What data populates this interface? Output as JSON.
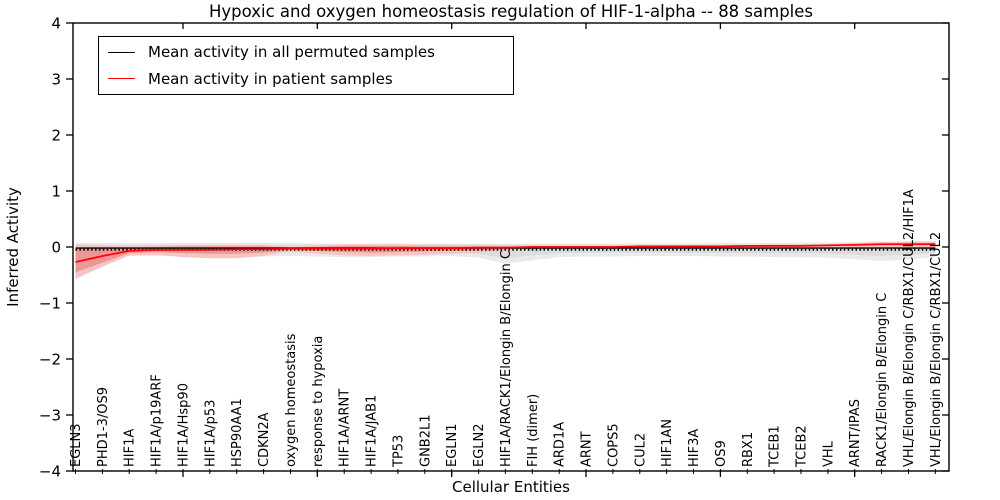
{
  "title": "Hypoxic and oxygen homeostasis regulation of HIF-1-alpha -- 88 samples",
  "sample_count_in_title": 88,
  "legend": {
    "entries": [
      {
        "label": "Mean activity in all permuted samples",
        "color": "#000000"
      },
      {
        "label": "Mean activity in patient samples",
        "color": "#ff0000"
      }
    ],
    "position": "upper left"
  },
  "axes": {
    "xlabel": "Cellular Entities",
    "ylabel": "Inferred Activity",
    "ylim": [
      -4,
      4
    ],
    "yticks": [
      -4,
      -3,
      -2,
      -1,
      0,
      1,
      2,
      3,
      4
    ],
    "xtick_category_numbers": [
      5,
      10,
      15,
      20,
      25,
      30
    ],
    "grid": false,
    "frame": true
  },
  "chart_data": {
    "type": "line",
    "title": "Hypoxic and oxygen homeostasis regulation of HIF-1-alpha -- 88 samples",
    "xlabel": "Cellular Entities",
    "ylabel": "Inferred Activity",
    "ylim": [
      -4,
      4
    ],
    "legend_position": "upper left",
    "categories": [
      "EGLN3",
      "PHD1-3/OS9",
      "HIF1A",
      "HIF1A/p19ARF",
      "HIF1A/Hsp90",
      "HIF1A/p53",
      "HSP90AA1",
      "CDKN2A",
      "oxygen homeostasis",
      "response to hypoxia",
      "HIF1A/ARNT",
      "HIF1A/JAB1",
      "TP53",
      "GNB2L1",
      "EGLN1",
      "EGLN2",
      "HIF1A/RACK1/Elongin B/Elongin C",
      "FIH (dimer)",
      "ARD1A",
      "ARNT",
      "COPS5",
      "CUL2",
      "HIF1AN",
      "HIF3A",
      "OS9",
      "RBX1",
      "TCEB1",
      "TCEB2",
      "VHL",
      "ARNT/IPAS",
      "RACK1/Elongin B/Elongin C",
      "VHL/Elongin B/Elongin C/RBX1/CUL2/HIF1A",
      "VHL/Elongin B/Elongin C/RBX1/CUL2"
    ],
    "series": [
      {
        "name": "Mean activity in all permuted samples",
        "color": "#000000",
        "line_style": "solid-with-dotted-overlay",
        "values": [
          -0.02,
          -0.02,
          -0.02,
          -0.02,
          -0.02,
          -0.02,
          -0.02,
          -0.02,
          -0.02,
          -0.02,
          -0.02,
          -0.02,
          -0.02,
          -0.02,
          -0.02,
          -0.02,
          -0.02,
          -0.02,
          -0.02,
          -0.02,
          -0.02,
          -0.02,
          -0.02,
          -0.02,
          -0.02,
          -0.02,
          -0.02,
          -0.02,
          -0.02,
          -0.02,
          -0.02,
          -0.02,
          -0.02
        ],
        "band_outer": {
          "color": "#eaeaea",
          "upper": [
            0.07,
            0.07,
            0.07,
            0.07,
            0.07,
            0.07,
            0.07,
            0.07,
            0.07,
            0.06,
            0.06,
            0.06,
            0.06,
            0.06,
            0.06,
            0.06,
            0.06,
            0.06,
            0.06,
            0.06,
            0.06,
            0.06,
            0.06,
            0.06,
            0.07,
            0.07,
            0.07,
            0.08,
            0.08,
            0.09,
            0.1,
            0.09,
            0.08
          ],
          "lower": [
            -0.18,
            -0.17,
            -0.16,
            -0.16,
            -0.17,
            -0.18,
            -0.18,
            -0.17,
            -0.16,
            -0.17,
            -0.18,
            -0.18,
            -0.17,
            -0.17,
            -0.16,
            -0.19,
            -0.3,
            -0.24,
            -0.18,
            -0.17,
            -0.17,
            -0.16,
            -0.16,
            -0.16,
            -0.17,
            -0.17,
            -0.18,
            -0.18,
            -0.19,
            -0.22,
            -0.25,
            -0.22,
            -0.18
          ]
        },
        "band_inner": {
          "color": "#dcdcdc",
          "upper": [
            0.04,
            0.04,
            0.04,
            0.04,
            0.04,
            0.04,
            0.04,
            0.04,
            0.04,
            0.04,
            0.04,
            0.04,
            0.04,
            0.04,
            0.04,
            0.04,
            0.04,
            0.04,
            0.04,
            0.04,
            0.04,
            0.04,
            0.04,
            0.04,
            0.04,
            0.04,
            0.05,
            0.05,
            0.05,
            0.06,
            0.06,
            0.05,
            0.05
          ],
          "lower": [
            -0.11,
            -0.11,
            -0.1,
            -0.1,
            -0.11,
            -0.11,
            -0.11,
            -0.1,
            -0.1,
            -0.11,
            -0.11,
            -0.11,
            -0.1,
            -0.1,
            -0.1,
            -0.12,
            -0.2,
            -0.15,
            -0.11,
            -0.1,
            -0.1,
            -0.1,
            -0.1,
            -0.1,
            -0.1,
            -0.11,
            -0.11,
            -0.11,
            -0.12,
            -0.14,
            -0.16,
            -0.14,
            -0.11
          ]
        }
      },
      {
        "name": "Mean activity in patient samples",
        "color": "#ff0000",
        "line_style": "solid",
        "values": [
          -0.27,
          -0.16,
          -0.07,
          -0.05,
          -0.05,
          -0.05,
          -0.04,
          -0.04,
          -0.03,
          -0.03,
          -0.03,
          -0.03,
          -0.02,
          -0.02,
          -0.02,
          -0.01,
          -0.01,
          0.0,
          0.0,
          0.0,
          0.0,
          0.01,
          0.01,
          0.01,
          0.01,
          0.02,
          0.02,
          0.02,
          0.03,
          0.04,
          0.05,
          0.05,
          0.05
        ],
        "band_outer": {
          "color": "#f7c4c4",
          "upper": [
            0.05,
            0.03,
            0.01,
            0.03,
            0.04,
            0.04,
            0.04,
            0.04,
            0.0,
            0.03,
            0.05,
            0.05,
            0.05,
            0.04,
            0.04,
            0.03,
            0.02,
            0.02,
            0.02,
            0.02,
            0.02,
            0.02,
            0.02,
            0.03,
            0.03,
            0.03,
            0.03,
            0.04,
            0.05,
            0.07,
            0.09,
            0.1,
            0.1
          ],
          "lower": [
            -0.57,
            -0.35,
            -0.15,
            -0.14,
            -0.18,
            -0.2,
            -0.2,
            -0.16,
            -0.07,
            -0.12,
            -0.15,
            -0.16,
            -0.15,
            -0.14,
            -0.12,
            -0.1,
            -0.06,
            -0.03,
            -0.03,
            -0.02,
            -0.02,
            -0.02,
            -0.02,
            -0.02,
            -0.02,
            -0.02,
            -0.02,
            -0.02,
            -0.01,
            -0.01,
            -0.01,
            -0.01,
            -0.01
          ]
        },
        "band_inner": {
          "color": "#ee9595",
          "upper": [
            -0.01,
            -0.02,
            -0.02,
            0.0,
            0.01,
            0.01,
            0.01,
            0.01,
            -0.01,
            0.0,
            0.02,
            0.02,
            0.02,
            0.01,
            0.01,
            0.01,
            0.01,
            0.01,
            0.01,
            0.01,
            0.01,
            0.01,
            0.02,
            0.02,
            0.02,
            0.02,
            0.02,
            0.03,
            0.03,
            0.05,
            0.06,
            0.07,
            0.07
          ],
          "lower": [
            -0.45,
            -0.28,
            -0.11,
            -0.09,
            -0.11,
            -0.12,
            -0.12,
            -0.1,
            -0.05,
            -0.07,
            -0.09,
            -0.1,
            -0.09,
            -0.08,
            -0.07,
            -0.06,
            -0.04,
            -0.02,
            -0.01,
            -0.01,
            -0.01,
            -0.01,
            0.0,
            0.0,
            0.0,
            0.0,
            0.0,
            0.01,
            0.01,
            0.02,
            0.03,
            0.03,
            0.03
          ]
        }
      }
    ]
  }
}
